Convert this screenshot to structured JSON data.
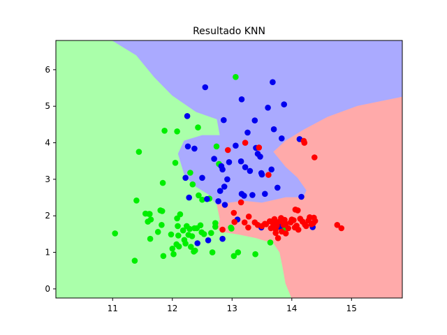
{
  "chart_data": {
    "type": "scatter",
    "title": "Resultado KNN",
    "xlabel": "",
    "ylabel": "",
    "xlim": [
      10.05,
      15.85
    ],
    "ylim": [
      -0.25,
      6.8
    ],
    "xticks": [
      11,
      12,
      13,
      14,
      15
    ],
    "yticks": [
      0,
      1,
      2,
      3,
      4,
      5,
      6
    ],
    "grid": false,
    "legend": "none",
    "regions": [
      {
        "class": "green",
        "color": "#aaffaa",
        "polygon": [
          [
            10.05,
            6.8
          ],
          [
            11.0,
            6.8
          ],
          [
            11.4,
            6.4
          ],
          [
            11.7,
            5.8
          ],
          [
            12.0,
            5.3
          ],
          [
            12.4,
            4.85
          ],
          [
            12.75,
            4.65
          ],
          [
            12.8,
            4.2
          ],
          [
            12.5,
            4.2
          ],
          [
            12.2,
            4.05
          ],
          [
            12.1,
            3.7
          ],
          [
            12.2,
            3.15
          ],
          [
            12.35,
            2.85
          ],
          [
            12.6,
            2.6
          ],
          [
            12.75,
            2.3
          ],
          [
            12.8,
            1.9
          ],
          [
            12.75,
            1.65
          ],
          [
            12.9,
            1.55
          ],
          [
            13.1,
            1.5
          ],
          [
            13.4,
            1.4
          ],
          [
            13.7,
            1.25
          ],
          [
            13.8,
            1.0
          ],
          [
            13.85,
            0.6
          ],
          [
            13.9,
            0.15
          ],
          [
            14.0,
            -0.25
          ],
          [
            10.05,
            -0.25
          ]
        ]
      },
      {
        "class": "blue",
        "color": "#aaaaff",
        "polygon": [
          [
            11.0,
            6.8
          ],
          [
            15.85,
            6.8
          ],
          [
            15.85,
            5.25
          ],
          [
            15.1,
            5.0
          ],
          [
            14.6,
            4.7
          ],
          [
            14.2,
            4.35
          ],
          [
            13.9,
            4.05
          ],
          [
            13.7,
            3.75
          ],
          [
            13.9,
            3.35
          ],
          [
            14.1,
            3.05
          ],
          [
            14.25,
            2.7
          ],
          [
            14.2,
            2.5
          ],
          [
            13.9,
            2.5
          ],
          [
            13.5,
            2.35
          ],
          [
            13.2,
            2.4
          ],
          [
            12.95,
            2.35
          ],
          [
            12.75,
            2.3
          ],
          [
            12.6,
            2.6
          ],
          [
            12.35,
            2.85
          ],
          [
            12.2,
            3.15
          ],
          [
            12.1,
            3.7
          ],
          [
            12.2,
            4.05
          ],
          [
            12.5,
            4.2
          ],
          [
            12.8,
            4.2
          ],
          [
            12.75,
            4.65
          ],
          [
            12.4,
            4.85
          ],
          [
            12.0,
            5.3
          ],
          [
            11.7,
            5.8
          ],
          [
            11.4,
            6.4
          ]
        ]
      },
      {
        "class": "red",
        "color": "#ffaaaa",
        "polygon": [
          [
            15.85,
            5.25
          ],
          [
            15.85,
            -0.25
          ],
          [
            14.0,
            -0.25
          ],
          [
            13.9,
            0.15
          ],
          [
            13.85,
            0.6
          ],
          [
            13.8,
            1.0
          ],
          [
            13.7,
            1.25
          ],
          [
            13.4,
            1.4
          ],
          [
            13.1,
            1.5
          ],
          [
            12.9,
            1.55
          ],
          [
            12.75,
            1.65
          ],
          [
            12.8,
            1.9
          ],
          [
            12.75,
            2.3
          ],
          [
            12.95,
            2.35
          ],
          [
            13.2,
            2.4
          ],
          [
            13.5,
            2.35
          ],
          [
            13.9,
            2.5
          ],
          [
            14.2,
            2.5
          ],
          [
            14.25,
            2.7
          ],
          [
            14.1,
            3.05
          ],
          [
            13.9,
            3.35
          ],
          [
            13.7,
            3.75
          ],
          [
            13.9,
            4.05
          ],
          [
            14.2,
            4.35
          ],
          [
            14.6,
            4.7
          ],
          [
            15.1,
            5.0
          ]
        ]
      }
    ],
    "series": [
      {
        "color": "#00ee00",
        "points": [
          [
            11.04,
            1.52
          ],
          [
            11.37,
            0.77
          ],
          [
            11.4,
            2.42
          ],
          [
            11.44,
            3.75
          ],
          [
            11.55,
            2.06
          ],
          [
            11.59,
            1.84
          ],
          [
            11.61,
            2.05
          ],
          [
            11.62,
            2.05
          ],
          [
            11.63,
            1.37
          ],
          [
            11.64,
            1.9
          ],
          [
            11.76,
            1.56
          ],
          [
            11.8,
            2.15
          ],
          [
            11.82,
            1.75
          ],
          [
            11.83,
            2.13
          ],
          [
            11.84,
            2.9
          ],
          [
            11.85,
            0.9
          ],
          [
            11.87,
            4.33
          ],
          [
            11.98,
            1.49
          ],
          [
            12.0,
            1.1
          ],
          [
            12.02,
            0.95
          ],
          [
            12.05,
            3.45
          ],
          [
            12.07,
            1.22
          ],
          [
            12.08,
            1.93
          ],
          [
            12.08,
            4.31
          ],
          [
            12.09,
            1.72
          ],
          [
            12.1,
            1.46
          ],
          [
            12.11,
            1.16
          ],
          [
            12.13,
            2.04
          ],
          [
            12.18,
            1.6
          ],
          [
            12.2,
            1.34
          ],
          [
            12.22,
            1.24
          ],
          [
            12.24,
            1.72
          ],
          [
            12.27,
            1.48
          ],
          [
            12.29,
            1.64
          ],
          [
            12.3,
            3.18
          ],
          [
            12.31,
            1.15
          ],
          [
            12.33,
            1.44
          ],
          [
            12.34,
            2.86
          ],
          [
            12.36,
            1.02
          ],
          [
            12.37,
            1.66
          ],
          [
            12.38,
            1.05
          ],
          [
            12.41,
            1.66
          ],
          [
            12.43,
            4.42
          ],
          [
            12.44,
            2.56
          ],
          [
            12.47,
            1.74
          ],
          [
            12.49,
            1.55
          ],
          [
            12.5,
            2.44
          ],
          [
            12.53,
            1.5
          ],
          [
            12.62,
            2.47
          ],
          [
            12.65,
            1.53
          ],
          [
            12.67,
            1.0
          ],
          [
            12.72,
            1.8
          ],
          [
            12.72,
            1.7
          ],
          [
            12.74,
            3.9
          ],
          [
            12.78,
            3.42
          ],
          [
            12.98,
            1.68
          ],
          [
            12.99,
            1.65
          ],
          [
            13.03,
            0.9
          ],
          [
            13.06,
            5.8
          ],
          [
            13.1,
            1.0
          ],
          [
            13.39,
            0.95
          ],
          [
            13.64,
            1.27
          ],
          [
            13.85,
            1.6
          ],
          [
            13.86,
            1.7
          ]
        ]
      },
      {
        "color": "#0000ee",
        "points": [
          [
            12.22,
            3.04
          ],
          [
            12.25,
            4.73
          ],
          [
            12.26,
            3.9
          ],
          [
            12.28,
            2.5
          ],
          [
            12.37,
            3.84
          ],
          [
            12.42,
            1.25
          ],
          [
            12.5,
            3.04
          ],
          [
            12.55,
            5.52
          ],
          [
            12.58,
            2.46
          ],
          [
            12.6,
            1.33
          ],
          [
            12.7,
            3.56
          ],
          [
            12.77,
            2.4
          ],
          [
            12.8,
            2.68
          ],
          [
            12.82,
            3.36
          ],
          [
            12.84,
            3.27
          ],
          [
            12.84,
            1.37
          ],
          [
            12.86,
            4.62
          ],
          [
            12.87,
            2.8
          ],
          [
            12.88,
            2.3
          ],
          [
            12.92,
            3.0
          ],
          [
            12.95,
            3.47
          ],
          [
            13.06,
            3.92
          ],
          [
            13.09,
            1.9
          ],
          [
            13.15,
            3.49
          ],
          [
            13.16,
            2.6
          ],
          [
            13.16,
            5.19
          ],
          [
            13.2,
            2.55
          ],
          [
            13.22,
            3.33
          ],
          [
            13.26,
            4.28
          ],
          [
            13.3,
            3.23
          ],
          [
            13.34,
            2.57
          ],
          [
            13.38,
            4.61
          ],
          [
            13.4,
            3.86
          ],
          [
            13.43,
            3.7
          ],
          [
            13.47,
            3.62
          ],
          [
            13.49,
            3.17
          ],
          [
            13.49,
            1.68
          ],
          [
            13.5,
            3.13
          ],
          [
            13.55,
            2.6
          ],
          [
            13.6,
            4.96
          ],
          [
            13.66,
            3.27
          ],
          [
            13.68,
            5.66
          ],
          [
            13.7,
            4.37
          ],
          [
            13.76,
            2.77
          ],
          [
            13.8,
            1.7
          ],
          [
            13.83,
            4.12
          ],
          [
            13.87,
            5.05
          ],
          [
            14.13,
            4.1
          ],
          [
            14.16,
            2.52
          ],
          [
            14.35,
            1.69
          ]
        ]
      },
      {
        "color": "#ff0000",
        "points": [
          [
            12.84,
            1.62
          ],
          [
            12.93,
            3.8
          ],
          [
            13.03,
            2.08
          ],
          [
            13.04,
            1.83
          ],
          [
            13.15,
            2.37
          ],
          [
            13.21,
            1.82
          ],
          [
            13.22,
            4.0
          ],
          [
            13.27,
            1.68
          ],
          [
            13.28,
            1.98
          ],
          [
            13.38,
            1.82
          ],
          [
            13.43,
            1.75
          ],
          [
            13.45,
            3.87
          ],
          [
            13.5,
            1.72
          ],
          [
            13.55,
            1.78
          ],
          [
            13.57,
            1.77
          ],
          [
            13.61,
            3.12
          ],
          [
            13.63,
            1.85
          ],
          [
            13.65,
            1.66
          ],
          [
            13.69,
            1.77
          ],
          [
            13.7,
            1.88
          ],
          [
            13.71,
            1.91
          ],
          [
            13.73,
            1.63
          ],
          [
            13.73,
            1.53
          ],
          [
            13.75,
            1.73
          ],
          [
            13.76,
            1.82
          ],
          [
            13.77,
            1.39
          ],
          [
            13.8,
            1.85
          ],
          [
            13.82,
            1.94
          ],
          [
            13.83,
            1.57
          ],
          [
            13.86,
            1.75
          ],
          [
            13.88,
            1.89
          ],
          [
            13.9,
            1.78
          ],
          [
            13.9,
            1.52
          ],
          [
            13.94,
            1.66
          ],
          [
            13.98,
            1.82
          ],
          [
            14.0,
            1.9
          ],
          [
            14.03,
            1.88
          ],
          [
            14.05,
            1.68
          ],
          [
            14.06,
            2.17
          ],
          [
            14.08,
            1.73
          ],
          [
            14.1,
            2.15
          ],
          [
            14.11,
            1.62
          ],
          [
            14.14,
            1.92
          ],
          [
            14.18,
            1.84
          ],
          [
            14.2,
            4.05
          ],
          [
            14.21,
            4.0
          ],
          [
            14.22,
            1.76
          ],
          [
            14.24,
            1.72
          ],
          [
            14.28,
            1.87
          ],
          [
            14.3,
            1.96
          ],
          [
            14.33,
            1.77
          ],
          [
            14.36,
            1.8
          ],
          [
            14.37,
            1.95
          ],
          [
            14.38,
            3.6
          ],
          [
            14.39,
            1.86
          ],
          [
            14.76,
            1.75
          ],
          [
            14.83,
            1.66
          ]
        ]
      }
    ]
  }
}
